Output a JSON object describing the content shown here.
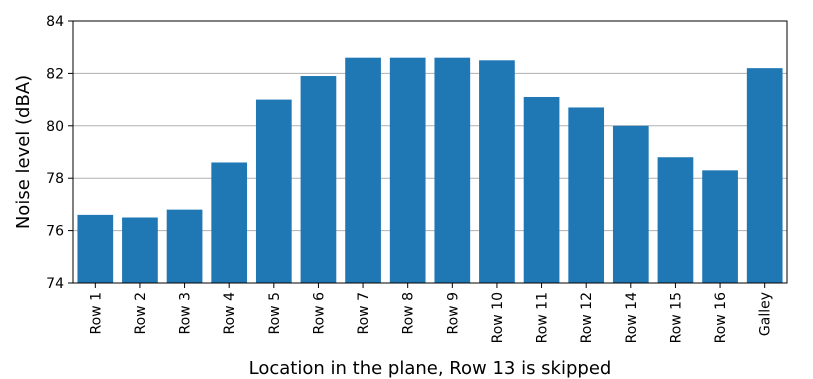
{
  "chart_data": {
    "type": "bar",
    "categories": [
      "Row 1",
      "Row 2",
      "Row 3",
      "Row 4",
      "Row 5",
      "Row 6",
      "Row 7",
      "Row 8",
      "Row 9",
      "Row 10",
      "Row 11",
      "Row 12",
      "Row 14",
      "Row 15",
      "Row 16",
      "Galley"
    ],
    "values": [
      76.6,
      76.5,
      76.8,
      78.6,
      81.0,
      81.9,
      82.6,
      82.6,
      82.6,
      82.5,
      81.1,
      80.7,
      80.0,
      78.8,
      78.3,
      82.2
    ],
    "title": "",
    "xlabel": "Location in the plane, Row 13 is skipped",
    "ylabel": "Noise level (dBA)",
    "ylim": [
      74,
      84
    ],
    "yticks": [
      74,
      76,
      78,
      80,
      82,
      84
    ],
    "grid": "horizontal",
    "colors": {
      "bar": "#1f77b4",
      "grid": "#b0b0b0",
      "axis": "#000000"
    }
  }
}
